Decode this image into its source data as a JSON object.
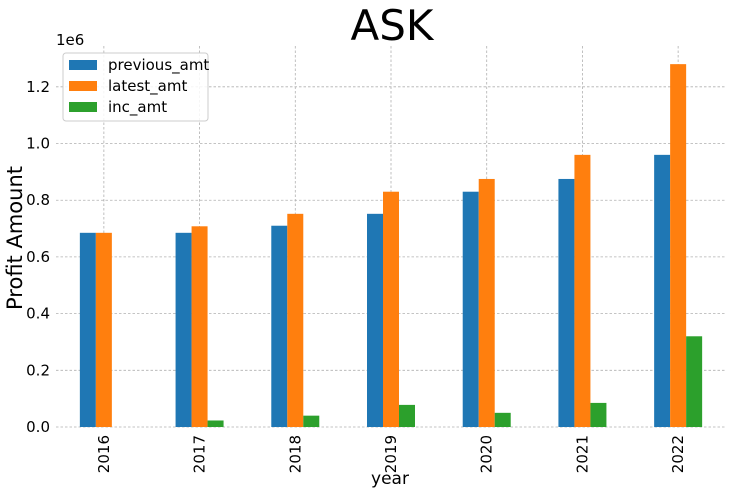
{
  "chart_data": {
    "type": "bar",
    "title": "ASK",
    "xlabel": "year",
    "ylabel": "Profit Amount",
    "y_multiplier_label": "1e6",
    "categories": [
      "2016",
      "2017",
      "2018",
      "2019",
      "2020",
      "2021",
      "2022"
    ],
    "series": [
      {
        "name": "previous_amt",
        "color": "#1f77b4",
        "values": [
          685000,
          685000,
          710000,
          752000,
          830000,
          875000,
          960000
        ]
      },
      {
        "name": "latest_amt",
        "color": "#ff7f0e",
        "values": [
          685000,
          708000,
          752000,
          830000,
          875000,
          960000,
          1280000
        ]
      },
      {
        "name": "inc_amt",
        "color": "#2ca02c",
        "values": [
          0,
          23000,
          40000,
          78000,
          50000,
          85000,
          320000
        ]
      }
    ],
    "yticks": [
      "0.0",
      "0.2",
      "0.4",
      "0.6",
      "0.8",
      "1.0",
      "1.2"
    ],
    "ytick_values": [
      0,
      200000,
      400000,
      600000,
      800000,
      1000000,
      1200000
    ],
    "ylim": [
      0,
      1344000
    ],
    "grid": true,
    "legend_position": "top-left"
  }
}
